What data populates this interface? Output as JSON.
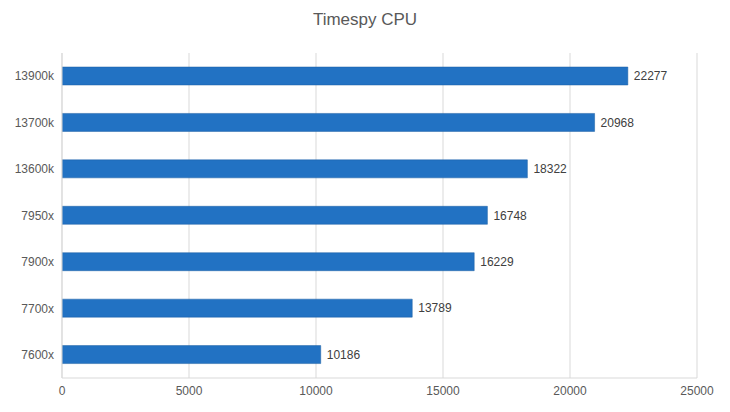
{
  "chart_data": {
    "type": "bar",
    "title": "Timespy CPU",
    "orientation": "horizontal",
    "categories": [
      "13900k",
      "13700k",
      "13600k",
      "7950x",
      "7900x",
      "7700x",
      "7600x"
    ],
    "values": [
      22277,
      20968,
      18322,
      16748,
      16229,
      13789,
      10186
    ],
    "color": "#2272c3",
    "xlim": [
      0,
      25000
    ],
    "xticks": [
      0,
      5000,
      10000,
      15000,
      20000,
      25000
    ],
    "grid": true,
    "data_labels": true
  }
}
